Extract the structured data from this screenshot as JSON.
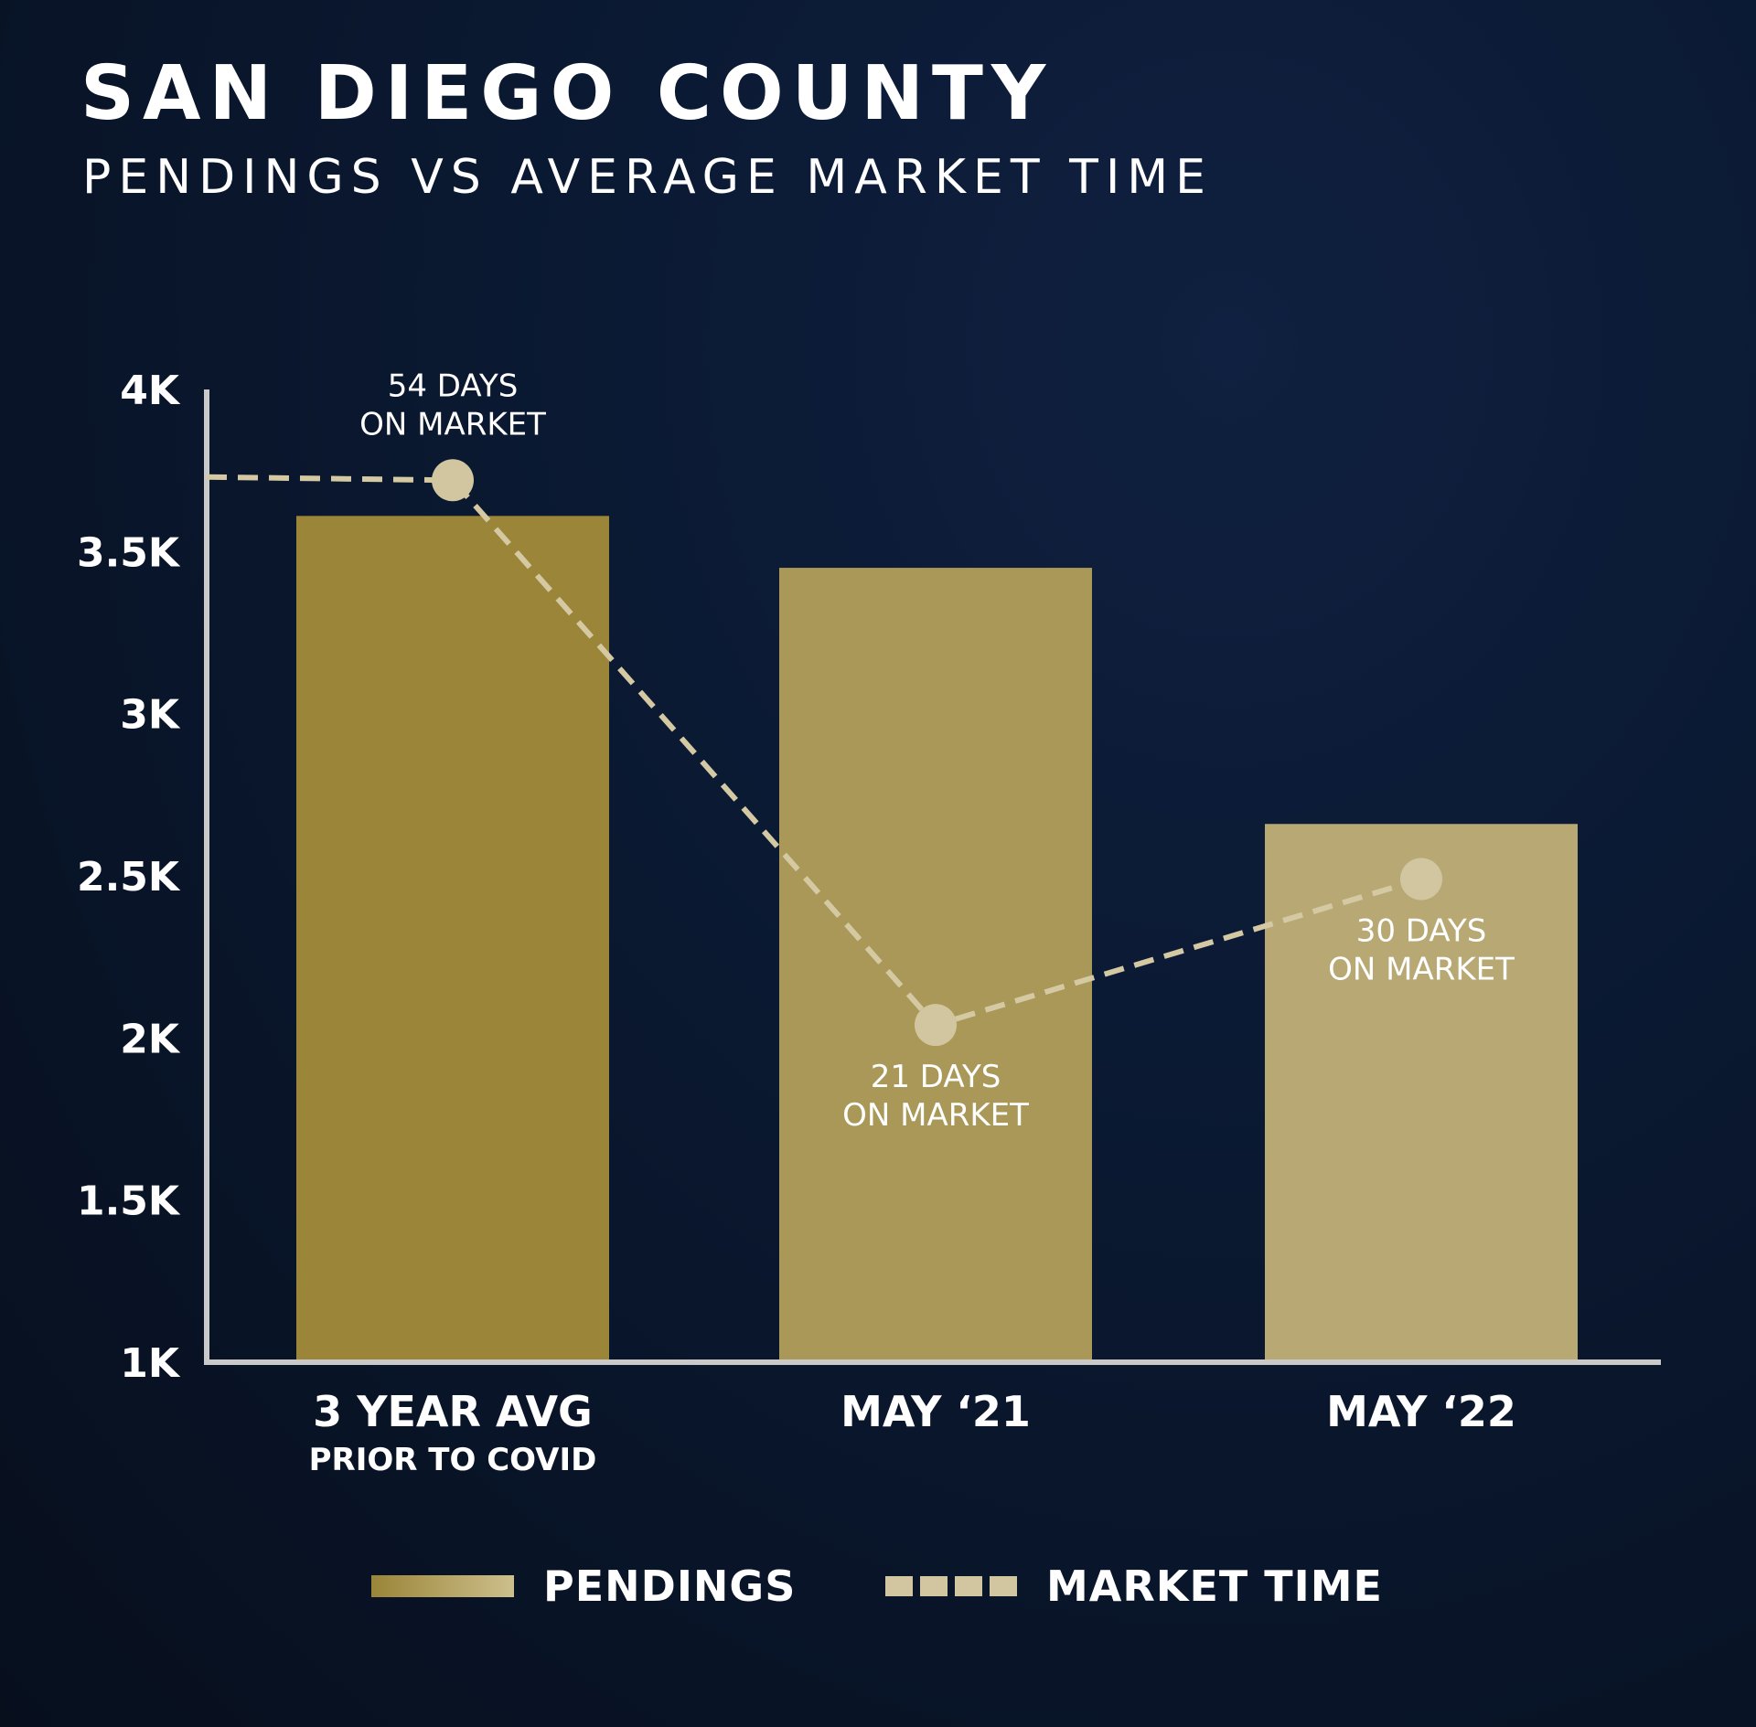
{
  "header": {
    "title": "SAN DIEGO COUNTY",
    "subtitle": "PENDINGS VS AVERAGE MARKET TIME"
  },
  "colors": {
    "background": "#0a1830",
    "axis": "#c9c9c9",
    "bar_1": "#9b8538",
    "bar_2": "#a99857",
    "bar_3": "#b8a974",
    "line": "#d4c9a3",
    "marker": "#d2c6a0",
    "text": "#ffffff"
  },
  "legend": {
    "pendings_label": "PENDINGS",
    "market_time_label": "MARKET TIME"
  },
  "chart_data": {
    "type": "bar",
    "title": "SAN DIEGO COUNTY",
    "subtitle": "PENDINGS VS AVERAGE MARKET TIME",
    "ylim": [
      1000,
      4000
    ],
    "yticks": [
      {
        "value": 1000,
        "label": "1K"
      },
      {
        "value": 1500,
        "label": "1.5K"
      },
      {
        "value": 2000,
        "label": "2K"
      },
      {
        "value": 2500,
        "label": "2.5K"
      },
      {
        "value": 3000,
        "label": "3K"
      },
      {
        "value": 3500,
        "label": "3.5K"
      },
      {
        "value": 4000,
        "label": "4K"
      }
    ],
    "categories": [
      {
        "label": "3 YEAR AVG",
        "sublabel": "PRIOR TO COVID"
      },
      {
        "label": "MAY ‘21",
        "sublabel": ""
      },
      {
        "label": "MAY ‘22",
        "sublabel": ""
      }
    ],
    "series": [
      {
        "name": "PENDINGS",
        "type": "bar",
        "values": [
          3610,
          3450,
          2660
        ]
      },
      {
        "name": "MARKET TIME",
        "type": "line",
        "style": "dashed",
        "plot_values": [
          3720,
          2040,
          2490
        ],
        "lead_in_value": 3730,
        "point_labels": [
          {
            "line1": "54 DAYS",
            "line2": "ON MARKET",
            "position": "above"
          },
          {
            "line1": "21 DAYS",
            "line2": "ON MARKET",
            "position": "below"
          },
          {
            "line1": "30 DAYS",
            "line2": "ON MARKET",
            "position": "below"
          }
        ]
      }
    ],
    "grid": false,
    "legend_position": "bottom-center"
  }
}
